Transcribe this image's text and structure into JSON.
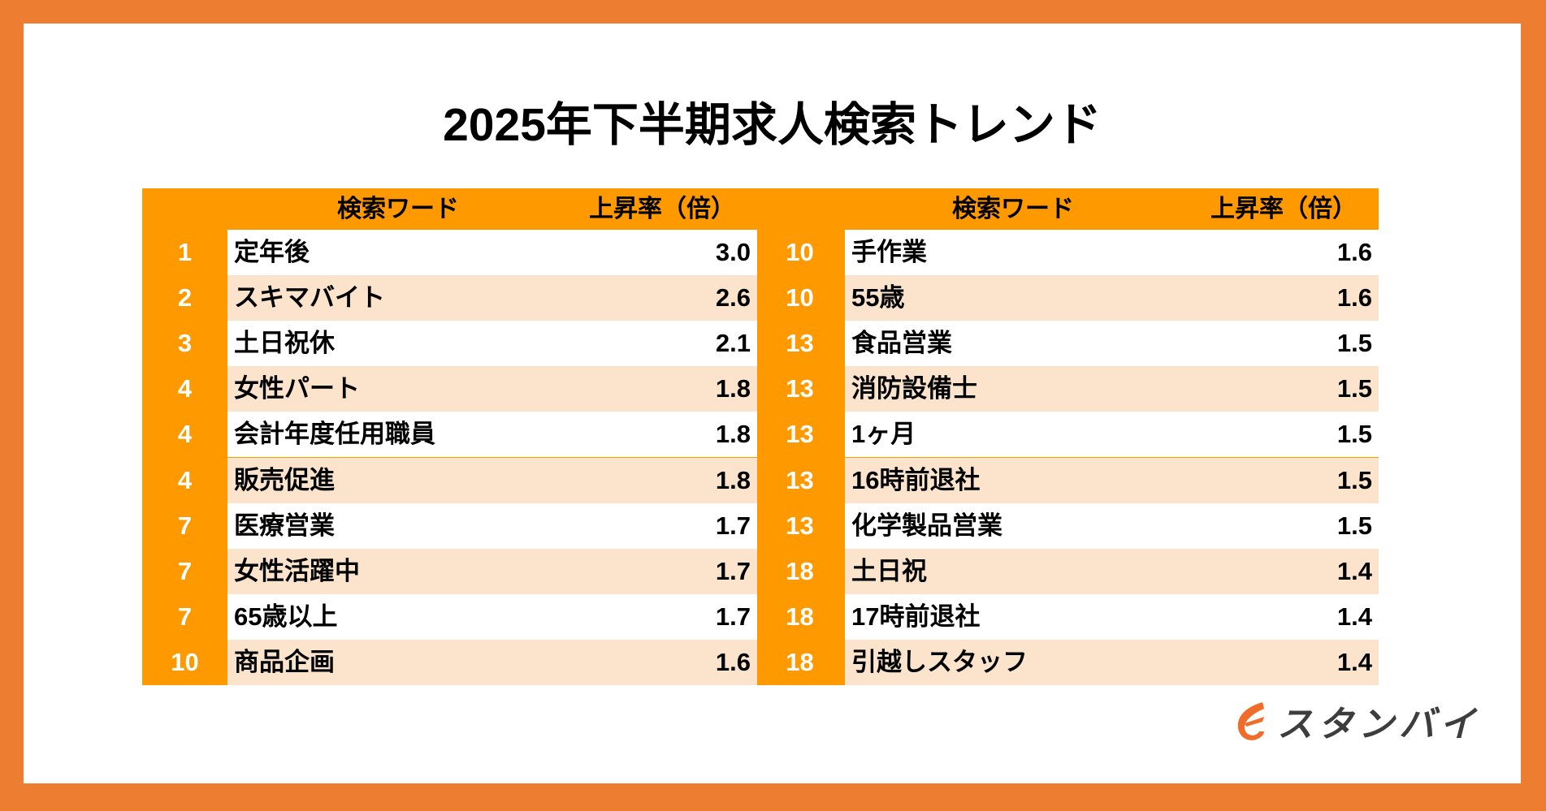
{
  "title": "2025年下半期求人検索トレンド",
  "colors": {
    "frame": "#ed7d31",
    "header": "#ff9900",
    "stripe": "#fce4cc",
    "rank_text": "#ffffff",
    "logo_icon": "#ef6c2a",
    "logo_text": "#3d3d3d"
  },
  "table": {
    "headers": {
      "keyword": "検索ワード",
      "rate": "上昇率（倍）"
    },
    "left": [
      {
        "rank": "1",
        "keyword": "定年後",
        "rate": "3.0"
      },
      {
        "rank": "2",
        "keyword": "スキマバイト",
        "rate": "2.6"
      },
      {
        "rank": "3",
        "keyword": "土日祝休",
        "rate": "2.1"
      },
      {
        "rank": "4",
        "keyword": "女性パート",
        "rate": "1.8"
      },
      {
        "rank": "4",
        "keyword": "会計年度任用職員",
        "rate": "1.8"
      },
      {
        "rank": "4",
        "keyword": "販売促進",
        "rate": "1.8"
      },
      {
        "rank": "7",
        "keyword": "医療営業",
        "rate": "1.7"
      },
      {
        "rank": "7",
        "keyword": "女性活躍中",
        "rate": "1.7"
      },
      {
        "rank": "7",
        "keyword": "65歳以上",
        "rate": "1.7"
      },
      {
        "rank": "10",
        "keyword": "商品企画",
        "rate": "1.6"
      }
    ],
    "right": [
      {
        "rank": "10",
        "keyword": "手作業",
        "rate": "1.6"
      },
      {
        "rank": "10",
        "keyword": "55歳",
        "rate": "1.6"
      },
      {
        "rank": "13",
        "keyword": "食品営業",
        "rate": "1.5"
      },
      {
        "rank": "13",
        "keyword": "消防設備士",
        "rate": "1.5"
      },
      {
        "rank": "13",
        "keyword": "1ヶ月",
        "rate": "1.5"
      },
      {
        "rank": "13",
        "keyword": "16時前退社",
        "rate": "1.5"
      },
      {
        "rank": "13",
        "keyword": "化学製品営業",
        "rate": "1.5"
      },
      {
        "rank": "18",
        "keyword": "土日祝",
        "rate": "1.4"
      },
      {
        "rank": "18",
        "keyword": "17時前退社",
        "rate": "1.4"
      },
      {
        "rank": "18",
        "keyword": "引越しスタッフ",
        "rate": "1.4"
      }
    ]
  },
  "logo": {
    "text": "スタンバイ",
    "icon": "wing-e-icon"
  }
}
